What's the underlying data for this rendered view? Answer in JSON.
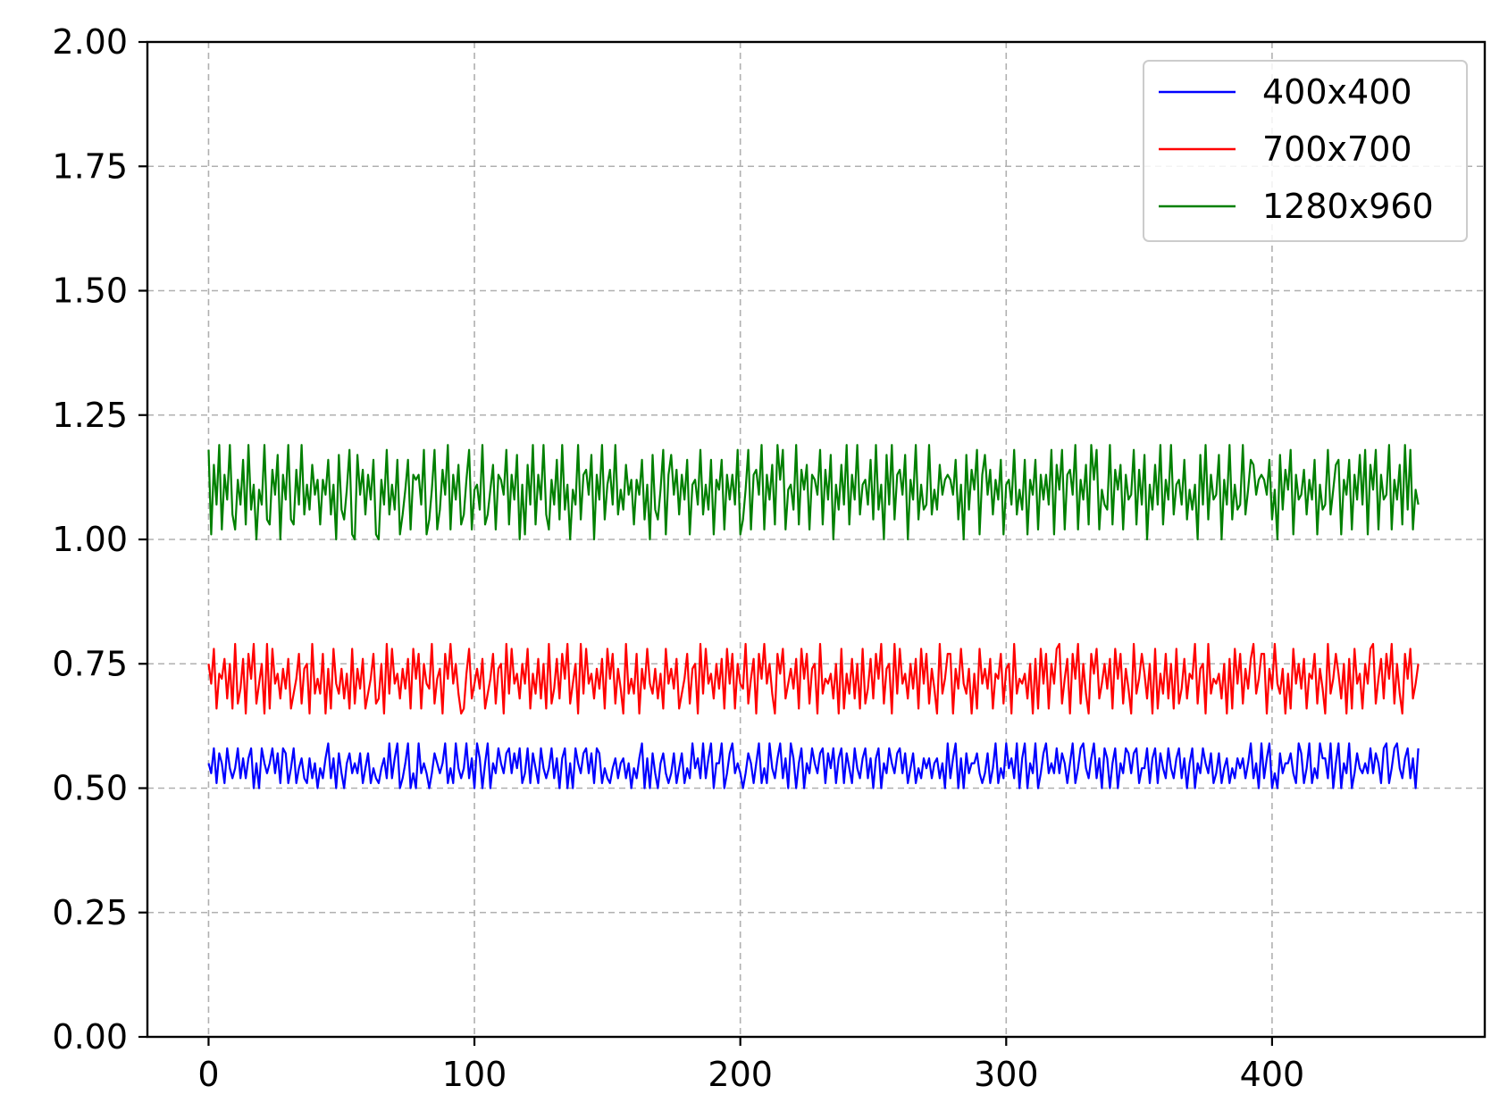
{
  "chart_data": {
    "type": "line",
    "title": "",
    "xlabel": "",
    "ylabel": "",
    "xlim": [
      -23,
      480
    ],
    "ylim": [
      0,
      2
    ],
    "xticks": [
      0,
      100,
      200,
      300,
      400
    ],
    "xtick_labels": [
      "0",
      "100",
      "200",
      "300",
      "400"
    ],
    "yticks": [
      0,
      0.25,
      0.5,
      0.75,
      1.0,
      1.25,
      1.5,
      1.75,
      2.0
    ],
    "ytick_labels": [
      "0.00",
      "0.25",
      "0.50",
      "0.75",
      "1.00",
      "1.25",
      "1.50",
      "1.75",
      "2.00"
    ],
    "grid": true,
    "legend_position": "top-right",
    "series": [
      {
        "name": "400x400",
        "color": "#0000ff",
        "x_start": 0,
        "x_step": 1,
        "range": [
          0.5,
          0.59
        ],
        "summary_mean": 0.545,
        "values": [
          0.55,
          0.53,
          0.58,
          0.51,
          0.57,
          0.54,
          0.52,
          0.56,
          0.59,
          0.5,
          0.53,
          0.57,
          0.55,
          0.51,
          0.58,
          0.54,
          0.52,
          0.56,
          0.5,
          0.57,
          0.53,
          0.55,
          0.59,
          0.51,
          0.54,
          0.58,
          0.52,
          0.56,
          0.5,
          0.55,
          0.57,
          0.53,
          0.51,
          0.59,
          0.54,
          0.52,
          0.56,
          0.58,
          0.5,
          0.55,
          0.53,
          0.57,
          0.51,
          0.54,
          0.59,
          0.52,
          0.56,
          0.5,
          0.58,
          0.55,
          0.53,
          0.57,
          0.51,
          0.54,
          0.52,
          0.59,
          0.56,
          0.5,
          0.55,
          0.58,
          0.53,
          0.57,
          0.51,
          0.54,
          0.56,
          0.52,
          0.59,
          0.5,
          0.55,
          0.53,
          0.58,
          0.57,
          0.51,
          0.54,
          0.52,
          0.56,
          0.59,
          0.5,
          0.55,
          0.53,
          0.57,
          0.58,
          0.51,
          0.54,
          0.56,
          0.52,
          0.55,
          0.59,
          0.5,
          0.53,
          0.57,
          0.54,
          0.58,
          0.51,
          0.56,
          0.52,
          0.55,
          0.5,
          0.59,
          0.53
        ]
      },
      {
        "name": "700x700",
        "color": "#ff0000",
        "x_start": 0,
        "x_step": 1,
        "range": [
          0.65,
          0.79
        ],
        "summary_mean": 0.72,
        "values": [
          0.75,
          0.71,
          0.78,
          0.66,
          0.73,
          0.69,
          0.77,
          0.65,
          0.74,
          0.7,
          0.79,
          0.67,
          0.72,
          0.76,
          0.68,
          0.75,
          0.66,
          0.78,
          0.71,
          0.69,
          0.74,
          0.65,
          0.77,
          0.72,
          0.79,
          0.67,
          0.7,
          0.76,
          0.68,
          0.73,
          0.66,
          0.78,
          0.71,
          0.75,
          0.69,
          0.65,
          0.77,
          0.72,
          0.79,
          0.67,
          0.74,
          0.7,
          0.76,
          0.66,
          0.73,
          0.78,
          0.68,
          0.71,
          0.75,
          0.65,
          0.79,
          0.69,
          0.72,
          0.77,
          0.67,
          0.74,
          0.7,
          0.76,
          0.66,
          0.78,
          0.71,
          0.73,
          0.68,
          0.75,
          0.65,
          0.79,
          0.69,
          0.72,
          0.77,
          0.67,
          0.74,
          0.7,
          0.76,
          0.66,
          0.78,
          0.71,
          0.73,
          0.68,
          0.75,
          0.65,
          0.79,
          0.69,
          0.72,
          0.77,
          0.67,
          0.74,
          0.7,
          0.76,
          0.66,
          0.78,
          0.71,
          0.73,
          0.68,
          0.75,
          0.65,
          0.79,
          0.69,
          0.72,
          0.77,
          0.66
        ]
      },
      {
        "name": "1280x960",
        "color": "#008000",
        "x_start": 0,
        "x_step": 1,
        "range": [
          1.0,
          1.19
        ],
        "summary_mean": 1.09,
        "values": [
          1.18,
          1.01,
          1.15,
          1.07,
          1.19,
          1.03,
          1.12,
          1.09,
          1.16,
          1.04,
          1.1,
          1.18,
          1.02,
          1.13,
          1.08,
          1.19,
          1.05,
          1.11,
          1.0,
          1.17,
          1.06,
          1.14,
          1.09,
          1.19,
          1.02,
          1.12,
          1.07,
          1.16,
          1.04,
          1.1,
          1.18,
          1.01,
          1.13,
          1.08,
          1.15,
          1.03,
          1.19,
          1.06,
          1.11,
          1.0,
          1.17,
          1.09,
          1.14,
          1.05,
          1.12,
          1.18,
          1.02,
          1.1,
          1.07,
          1.19,
          1.04,
          1.13,
          1.08,
          1.16,
          1.01,
          1.11,
          1.06,
          1.19,
          1.03,
          1.14,
          1.09,
          1.17,
          1.0,
          1.12,
          1.07,
          1.18,
          1.05,
          1.1,
          1.15,
          1.02,
          1.13,
          1.08,
          1.19,
          1.04,
          1.11,
          1.06,
          1.16,
          1.01,
          1.12,
          1.09,
          1.18,
          1.03,
          1.14,
          1.07,
          1.19,
          1.05,
          1.1,
          1.16,
          1.02,
          1.13,
          1.08,
          1.17,
          1.0,
          1.11,
          1.06,
          1.15,
          1.09,
          1.12,
          1.13,
          1.07
        ]
      }
    ]
  }
}
